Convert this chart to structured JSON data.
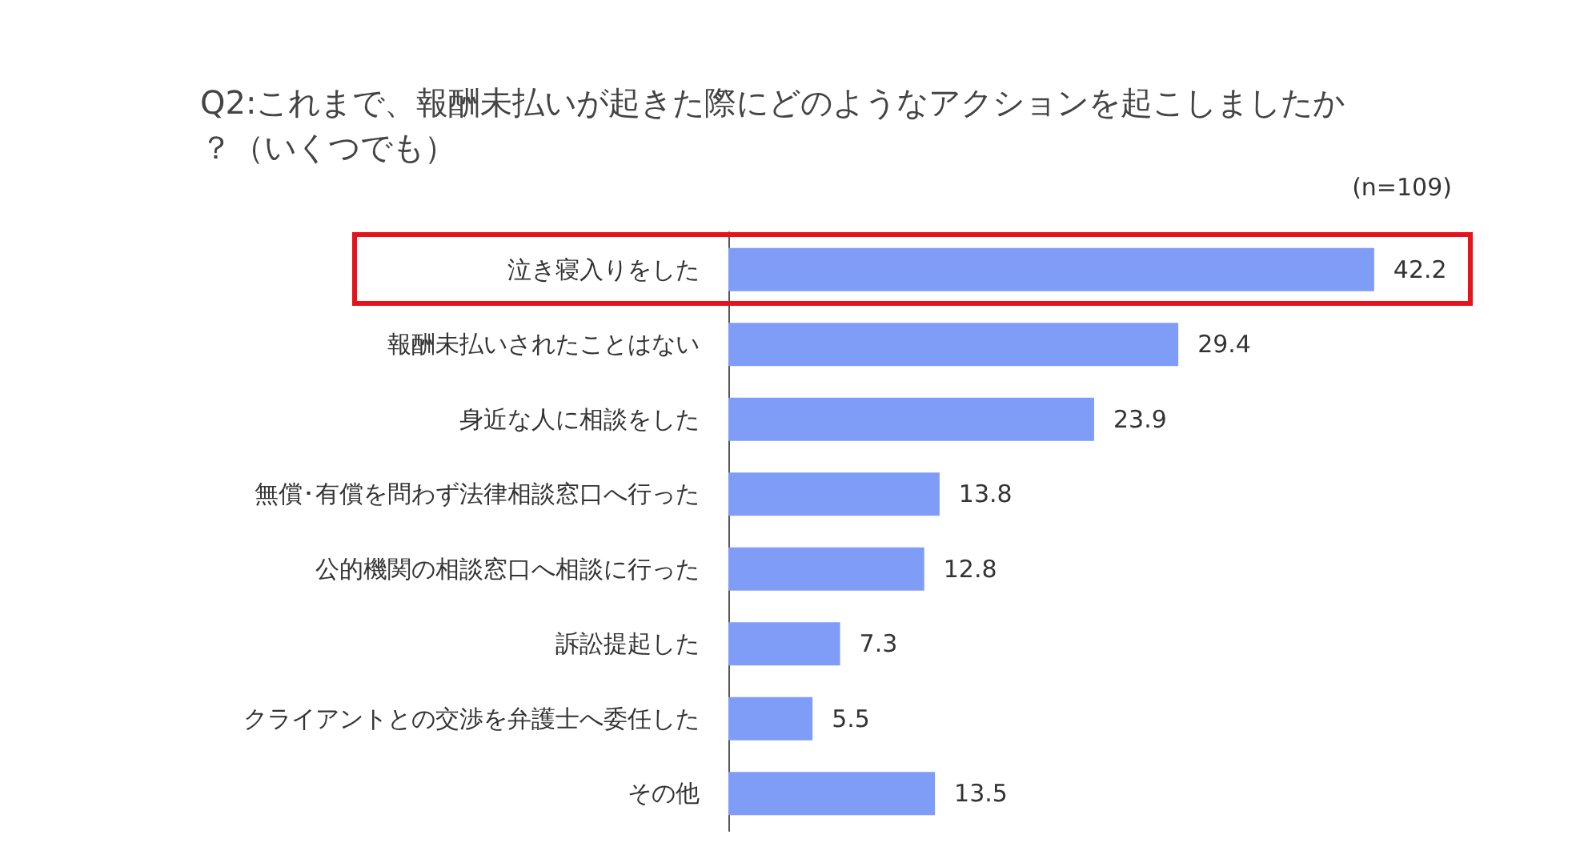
{
  "chart_data": {
    "type": "bar",
    "orientation": "horizontal",
    "title": "Q2:これまで、報酬未払いが起きた際にどのようなアクションを起こしましたか？（いくつでも）",
    "annotations": [
      "(n=109)"
    ],
    "categories": [
      "泣き寝入りをした",
      "報酬未払いされたことはない",
      "身近な人に相談をした",
      "無償･有償を問わず法律相談窓口へ行った",
      "公的機関の相談窓口へ相談に行った",
      "訴訟提起した",
      "クライアントとの交渉を弁護士へ委任した",
      "その他"
    ],
    "values": [
      42.2,
      29.4,
      23.9,
      13.8,
      12.8,
      7.3,
      5.5,
      13.5
    ],
    "color": "#7f9cf7",
    "data_labels": true,
    "grid": false
  }
}
